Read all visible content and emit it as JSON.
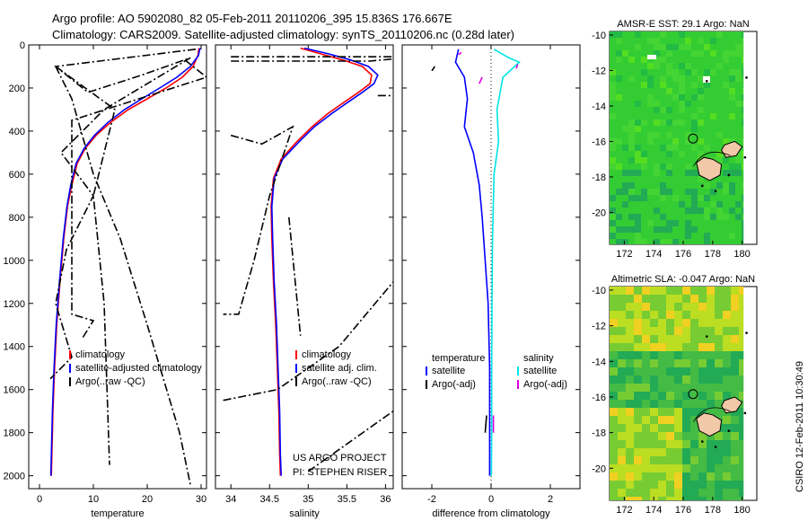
{
  "header": {
    "title_line1": "Argo profile: AO 5902080_82 05-Feb-2011 20110206_395 15.836S 176.667E",
    "title_line2": "Climatology: CARS2009. Satellite-adjusted climatology: synTS_20110206.nc (0.28d later)"
  },
  "footer": {
    "project": "US ARGO PROJECT",
    "pi": "PI: STEPHEN RISER",
    "stamp": "CSIRO 12-Feb-2011 10:30:49"
  },
  "colors": {
    "climatology": "#ff0000",
    "satellite": "#0000ff",
    "argo": "#000000",
    "satellite_sal": "#00e5e5",
    "argo_adj": "#e000e0"
  },
  "chart_data": [
    {
      "id": "temperature",
      "type": "line",
      "xlabel": "temperature",
      "xlim": [
        -2,
        31
      ],
      "ylim": [
        2060,
        0
      ],
      "xticks": [
        0,
        10,
        20,
        30
      ],
      "yticks": [
        0,
        200,
        400,
        600,
        800,
        1000,
        1200,
        1400,
        1600,
        1800,
        2000
      ],
      "legend": [
        "climatology",
        "satellite-adjusted climatology",
        "Argo(..raw -QC)"
      ],
      "series": [
        {
          "name": "climatology",
          "color": "climatology",
          "points": [
            [
              29.6,
              15
            ],
            [
              29.4,
              50
            ],
            [
              28.5,
              100
            ],
            [
              26.5,
              150
            ],
            [
              23.5,
              200
            ],
            [
              20,
              250
            ],
            [
              16.5,
              300
            ],
            [
              13.2,
              360
            ],
            [
              10.5,
              420
            ],
            [
              8.5,
              480
            ],
            [
              7,
              550
            ],
            [
              6,
              650
            ],
            [
              5.2,
              750
            ],
            [
              4.5,
              900
            ],
            [
              3.8,
              1100
            ],
            [
              3.2,
              1300
            ],
            [
              2.8,
              1500
            ],
            [
              2.5,
              1700
            ],
            [
              2.3,
              1900
            ],
            [
              2.2,
              2000
            ]
          ]
        },
        {
          "name": "satellite",
          "color": "satellite",
          "points": [
            [
              29.8,
              15
            ],
            [
              29.5,
              50
            ],
            [
              28,
              100
            ],
            [
              25.5,
              150
            ],
            [
              22.3,
              200
            ],
            [
              19,
              250
            ],
            [
              15.8,
              300
            ],
            [
              12.7,
              360
            ],
            [
              10.2,
              420
            ],
            [
              8.3,
              480
            ],
            [
              6.8,
              550
            ],
            [
              5.8,
              650
            ],
            [
              5.1,
              750
            ],
            [
              4.4,
              900
            ],
            [
              3.7,
              1100
            ],
            [
              3.1,
              1300
            ],
            [
              2.7,
              1500
            ],
            [
              2.4,
              1700
            ],
            [
              2.2,
              1900
            ],
            [
              2.1,
              2000
            ]
          ]
        },
        {
          "name": "argo_a",
          "color": "argo",
          "dash": "9,3,2,3",
          "points": [
            [
              29,
              20
            ],
            [
              3,
              100
            ],
            [
              9,
              220
            ],
            [
              19,
              140
            ],
            [
              28,
              60
            ],
            [
              12,
              300
            ],
            [
              4,
              500
            ],
            [
              10,
              700
            ],
            [
              5,
              950
            ],
            [
              3,
              1200
            ],
            [
              6,
              1450
            ],
            [
              2,
              1550
            ]
          ]
        },
        {
          "name": "argo_b",
          "color": "argo",
          "dash": "9,3,2,3",
          "points": [
            [
              3,
              100
            ],
            [
              14,
              300
            ],
            [
              10,
              700
            ],
            [
              12,
              1200
            ],
            [
              13,
              1950
            ]
          ]
        },
        {
          "name": "argo_c",
          "color": "argo",
          "dash": "9,3,2,3",
          "points": [
            [
              3,
              100
            ],
            [
              6,
              250
            ],
            [
              10,
              600
            ],
            [
              15,
              900
            ],
            [
              20,
              1300
            ],
            [
              26,
              1800
            ],
            [
              28,
              2040
            ]
          ]
        },
        {
          "name": "argo_d",
          "color": "argo",
          "dash": "9,3,2,3",
          "points": [
            [
              27,
              70
            ],
            [
              31,
              150
            ],
            [
              6,
              350
            ],
            [
              6,
              1250
            ],
            [
              10,
              1280
            ],
            [
              8,
              1360
            ]
          ]
        }
      ]
    },
    {
      "id": "salinity",
      "type": "line",
      "xlabel": "salinity",
      "xlim": [
        33.8,
        36.1
      ],
      "ylim": [
        2060,
        0
      ],
      "xticks": [
        34,
        34.5,
        35,
        35.5,
        36
      ],
      "xtick_labels": [
        "34",
        "34.5",
        "35",
        "35.5",
        "36"
      ],
      "legend": [
        "climatology",
        "satellite adj. clim.",
        "Argo(..raw -QC)"
      ],
      "series": [
        {
          "name": "climatology",
          "color": "climatology",
          "points": [
            [
              34.9,
              15
            ],
            [
              35.15,
              40
            ],
            [
              35.45,
              70
            ],
            [
              35.7,
              100
            ],
            [
              35.82,
              140
            ],
            [
              35.8,
              180
            ],
            [
              35.65,
              220
            ],
            [
              35.45,
              270
            ],
            [
              35.25,
              320
            ],
            [
              35.05,
              380
            ],
            [
              34.85,
              450
            ],
            [
              34.65,
              530
            ],
            [
              34.55,
              620
            ],
            [
              34.52,
              750
            ],
            [
              34.53,
              900
            ],
            [
              34.55,
              1100
            ],
            [
              34.58,
              1300
            ],
            [
              34.6,
              1500
            ],
            [
              34.62,
              1700
            ],
            [
              34.63,
              1900
            ],
            [
              34.64,
              2000
            ]
          ]
        },
        {
          "name": "satellite",
          "color": "satellite",
          "points": [
            [
              34.95,
              15
            ],
            [
              35.25,
              40
            ],
            [
              35.55,
              70
            ],
            [
              35.78,
              100
            ],
            [
              35.9,
              140
            ],
            [
              35.85,
              180
            ],
            [
              35.7,
              220
            ],
            [
              35.5,
              270
            ],
            [
              35.3,
              320
            ],
            [
              35.08,
              380
            ],
            [
              34.88,
              450
            ],
            [
              34.67,
              530
            ],
            [
              34.56,
              620
            ],
            [
              34.53,
              750
            ],
            [
              34.54,
              900
            ],
            [
              34.56,
              1100
            ],
            [
              34.59,
              1300
            ],
            [
              34.61,
              1500
            ],
            [
              34.63,
              1700
            ],
            [
              34.64,
              1900
            ],
            [
              34.65,
              2000
            ]
          ]
        },
        {
          "name": "argo_a",
          "color": "argo",
          "dash": "9,3,2,3",
          "points": [
            [
              34,
              55
            ],
            [
              36.1,
              55
            ]
          ]
        },
        {
          "name": "argo_b",
          "color": "argo",
          "dash": "9,3,2,3",
          "points": [
            [
              34,
              75
            ],
            [
              35.8,
              75
            ],
            [
              36.1,
              65
            ]
          ]
        },
        {
          "name": "argo_c",
          "color": "argo",
          "dash": "9,3,2,3",
          "points": [
            [
              35.9,
              235
            ],
            [
              36.1,
              235
            ]
          ]
        },
        {
          "name": "argo_d",
          "color": "argo",
          "dash": "9,3,2,3",
          "points": [
            [
              34,
              420
            ],
            [
              34.4,
              460
            ],
            [
              34.8,
              380
            ],
            [
              34.5,
              700
            ],
            [
              34.3,
              1000
            ],
            [
              34.1,
              1250
            ],
            [
              33.9,
              1250
            ]
          ]
        },
        {
          "name": "argo_e",
          "color": "argo",
          "dash": "9,3,2,3",
          "points": [
            [
              34.75,
              800
            ],
            [
              34.9,
              1350
            ]
          ]
        },
        {
          "name": "argo_f",
          "color": "argo",
          "dash": "9,3,2,3",
          "points": [
            [
              33.9,
              1650
            ],
            [
              34.6,
              1600
            ],
            [
              35.4,
              1400
            ],
            [
              36.1,
              1100
            ]
          ]
        },
        {
          "name": "argo_g",
          "color": "argo",
          "dash": "9,3,2,3",
          "points": [
            [
              35,
              1980
            ],
            [
              36.1,
              1700
            ]
          ]
        }
      ]
    },
    {
      "id": "difference",
      "type": "line",
      "xlabel": "difference from climatology",
      "xlim": [
        -3,
        3
      ],
      "ylim": [
        2060,
        0
      ],
      "xticks": [
        -2,
        0,
        2
      ],
      "legend_titles": [
        "temperature",
        "salinity"
      ],
      "legend": [
        "satellite",
        "Argo(-adj)",
        "satellite",
        "Argo(-adj)"
      ],
      "series": [
        {
          "name": "temp_satellite",
          "color": "satellite",
          "points": [
            [
              -1.1,
              20
            ],
            [
              -1.2,
              80
            ],
            [
              -0.9,
              150
            ],
            [
              -0.8,
              250
            ],
            [
              -0.9,
              380
            ],
            [
              -0.6,
              500
            ],
            [
              -0.4,
              650
            ],
            [
              -0.3,
              800
            ],
            [
              -0.2,
              1000
            ],
            [
              -0.1,
              1200
            ],
            [
              -0.05,
              1500
            ],
            [
              -0.05,
              1800
            ],
            [
              -0.05,
              2000
            ]
          ]
        },
        {
          "name": "sal_satellite",
          "color": "satellite_sal",
          "points": [
            [
              0.1,
              20
            ],
            [
              0.6,
              60
            ],
            [
              0.95,
              80
            ],
            [
              0.4,
              150
            ],
            [
              0.2,
              300
            ],
            [
              0.25,
              450
            ],
            [
              0.1,
              600
            ],
            [
              0.05,
              900
            ],
            [
              0.03,
              1200
            ],
            [
              0.02,
              1500
            ],
            [
              0.02,
              1800
            ],
            [
              0.01,
              2000
            ]
          ]
        },
        {
          "name": "argo_adj_sal",
          "color": "argo_adj",
          "points": [
            [
              -1.1,
              45
            ],
            [
              -1.0,
              35
            ]
          ]
        },
        {
          "name": "argo_adj_sal2",
          "color": "argo_adj",
          "points": [
            [
              -0.4,
              180
            ],
            [
              -0.3,
              150
            ]
          ]
        },
        {
          "name": "argo_adj_sal3",
          "color": "argo_adj",
          "points": [
            [
              0.85,
              110
            ],
            [
              0.9,
              90
            ]
          ]
        },
        {
          "name": "argo_adj_sal4",
          "color": "argo_adj",
          "points": [
            [
              0.08,
              1720
            ],
            [
              0.08,
              1800
            ]
          ]
        },
        {
          "name": "argo_adj_temp",
          "color": "argo",
          "points": [
            [
              -2,
              120
            ],
            [
              -1.9,
              100
            ]
          ]
        },
        {
          "name": "argo_adj_temp2",
          "color": "argo",
          "points": [
            [
              -0.15,
              1720
            ],
            [
              -0.2,
              1800
            ]
          ]
        }
      ]
    },
    {
      "id": "amsr_sst",
      "type": "heatmap",
      "title": "AMSR-E SST: 29.1 Argo: NaN",
      "xlim": [
        171,
        181
      ],
      "ylim": [
        -21.8,
        -9.8
      ],
      "xticks": [
        172,
        174,
        176,
        178,
        180
      ],
      "yticks": [
        -10,
        -12,
        -14,
        -16,
        -18,
        -20
      ],
      "argo_position": {
        "lon": 176.667,
        "lat": -15.836
      }
    },
    {
      "id": "altimetric_sla",
      "type": "heatmap",
      "title": "Altimetric SLA: -0.047 Argo: NaN",
      "xlim": [
        171,
        181
      ],
      "ylim": [
        -21.8,
        -9.8
      ],
      "xticks": [
        172,
        174,
        176,
        178,
        180
      ],
      "yticks": [
        -10,
        -12,
        -14,
        -16,
        -18,
        -20
      ],
      "argo_position": {
        "lon": 176.667,
        "lat": -15.836
      }
    }
  ]
}
